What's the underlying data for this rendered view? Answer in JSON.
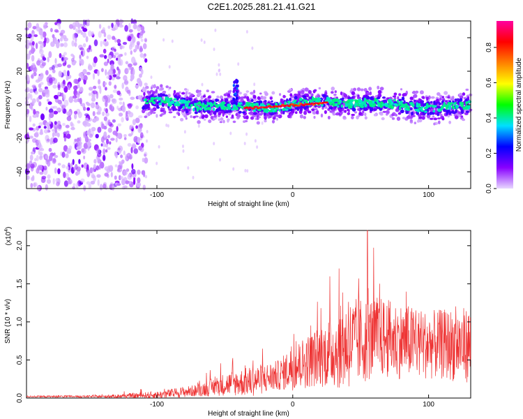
{
  "title": "C2E1.2025.281.21.41.G21",
  "chart_data": [
    {
      "type": "heatmap",
      "name": "spectrogram",
      "xlabel": "Height of straight line (km)",
      "ylabel": "Frequency (Hz)",
      "xlim": [
        -196,
        131
      ],
      "ylim": [
        -50,
        50
      ],
      "xticks": [
        -100,
        0,
        100
      ],
      "xtick_labels": [
        "-100",
        "0",
        "100"
      ],
      "yticks": [
        -40,
        -20,
        0,
        20,
        40
      ],
      "ytick_labels": [
        "-40",
        "-20",
        "0",
        "20",
        "40"
      ],
      "colorbar": {
        "label": "Normalized spectral amplitude",
        "range": [
          0,
          0.95
        ],
        "ticks": [
          0.0,
          0.2,
          0.4,
          0.6,
          0.8
        ],
        "tick_labels": [
          "0.0",
          "0.2",
          "0.4",
          "0.6",
          "0.8"
        ],
        "colors": [
          "#e8d8ff",
          "#8800ff",
          "#0000ff",
          "#00e0ff",
          "#00ff00",
          "#ffff00",
          "#ff8000",
          "#ff0000",
          "#ff00a0"
        ]
      },
      "features": [
        {
          "label": "noise region",
          "x_range": [
            -196,
            -108
          ],
          "freq_range": [
            -50,
            50
          ],
          "amplitude": 0.1
        },
        {
          "label": "signal band",
          "x_range": [
            -110,
            131
          ],
          "center_freq": 0,
          "half_width_hz": 5,
          "amplitude": 0.5
        },
        {
          "label": "peak ridge",
          "x_range": [
            -35,
            25
          ],
          "center_freq": -2,
          "amplitude": 0.9
        },
        {
          "label": "spike",
          "x": -42,
          "freq_range": [
            0,
            15
          ],
          "amplitude": 0.3
        }
      ]
    },
    {
      "type": "line",
      "name": "snr",
      "xlabel": "Height of straight line (km)",
      "ylabel": "SNR (10 * v/v)",
      "y_multiplier": "(x10",
      "y_multiplier_exp": "4",
      "y_multiplier_close": ")",
      "xlim": [
        -196,
        131
      ],
      "ylim": [
        0,
        2.2
      ],
      "xticks": [
        -100,
        0,
        100
      ],
      "xtick_labels": [
        "-100",
        "0",
        "100"
      ],
      "yticks": [
        0.0,
        0.5,
        1.0,
        1.5,
        2.0
      ],
      "ytick_labels": [
        "0.0",
        "0.5",
        "1.0",
        "1.5",
        "2.0"
      ],
      "color": "#ee3333",
      "envelope": [
        {
          "x": -196,
          "mean": 0.02,
          "spread": 0.01
        },
        {
          "x": -140,
          "mean": 0.02,
          "spread": 0.015
        },
        {
          "x": -100,
          "mean": 0.04,
          "spread": 0.05
        },
        {
          "x": -70,
          "mean": 0.1,
          "spread": 0.08
        },
        {
          "x": -50,
          "mean": 0.18,
          "spread": 0.15
        },
        {
          "x": -30,
          "mean": 0.22,
          "spread": 0.2
        },
        {
          "x": -10,
          "mean": 0.3,
          "spread": 0.2
        },
        {
          "x": 0,
          "mean": 0.4,
          "spread": 0.3
        },
        {
          "x": 20,
          "mean": 0.55,
          "spread": 0.4
        },
        {
          "x": 40,
          "mean": 0.7,
          "spread": 0.6
        },
        {
          "x": 60,
          "mean": 0.8,
          "spread": 0.55
        },
        {
          "x": 80,
          "mean": 0.75,
          "spread": 0.5
        },
        {
          "x": 100,
          "mean": 0.7,
          "spread": 0.45
        },
        {
          "x": 131,
          "mean": 0.7,
          "spread": 0.5
        }
      ],
      "peak": {
        "x": 55,
        "y": 2.2
      }
    }
  ]
}
